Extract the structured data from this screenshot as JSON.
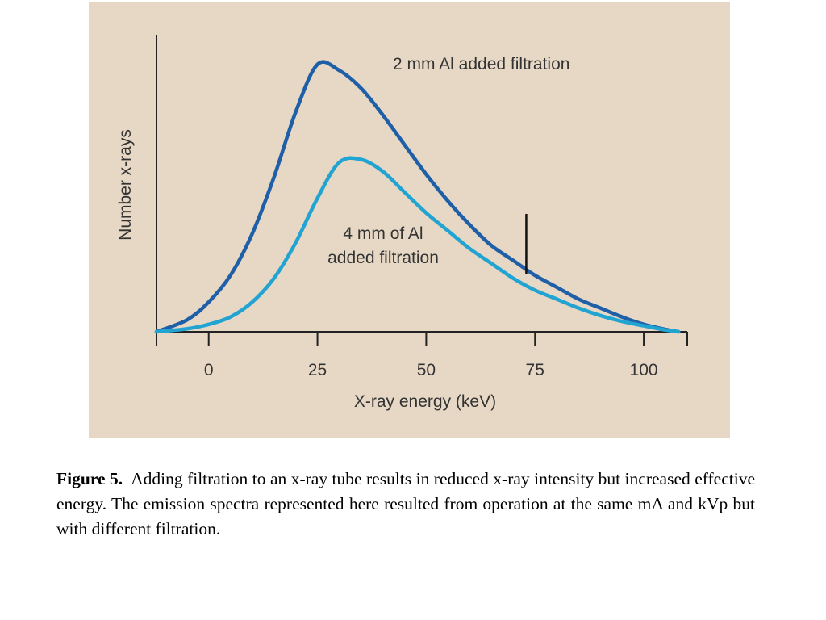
{
  "chart_data": {
    "type": "line",
    "title": "",
    "xlabel": "X-ray energy (keV)",
    "ylabel": "Number x-rays",
    "x_ticks": [
      0,
      25,
      50,
      75,
      100
    ],
    "x_tick_labels": [
      "0",
      "25",
      "50",
      "75",
      "100"
    ],
    "xlim": [
      -12,
      110
    ],
    "ylim": [
      0,
      100
    ],
    "grid": false,
    "legend": "none",
    "marker_x": 73,
    "series": [
      {
        "name": "2 mm Al added filtration",
        "color": "#1f5fa8",
        "x": [
          -12,
          -5,
          0,
          5,
          10,
          15,
          20,
          25,
          30,
          35,
          40,
          45,
          50,
          55,
          60,
          65,
          70,
          75,
          80,
          85,
          90,
          95,
          100,
          105,
          108
        ],
        "y": [
          0,
          4,
          10,
          19,
          33,
          52,
          74,
          90,
          88,
          82,
          73,
          63,
          53,
          44,
          36,
          29,
          24,
          19,
          15,
          11,
          8,
          5,
          2.5,
          0.8,
          0
        ]
      },
      {
        "name": "4 mm of Al added filtration",
        "color": "#22a4d2",
        "x": [
          -12,
          -5,
          0,
          5,
          10,
          15,
          20,
          25,
          30,
          35,
          40,
          45,
          50,
          55,
          60,
          65,
          70,
          75,
          80,
          85,
          90,
          95,
          100,
          105,
          108
        ],
        "y": [
          0,
          1,
          2.5,
          5,
          10,
          18,
          30,
          45,
          57,
          58,
          54,
          47,
          40,
          34,
          28,
          23,
          18,
          14,
          11,
          8,
          5.5,
          3.5,
          2,
          0.6,
          0
        ]
      }
    ],
    "annotations": [
      {
        "lines": [
          "2 mm Al added filtration"
        ]
      },
      {
        "lines": [
          "4 mm of Al",
          "added filtration"
        ]
      }
    ]
  },
  "caption": {
    "label": "Figure 5.",
    "text": "Adding filtration to an x-ray tube results in reduced x-ray intensity but increased effective energy. The emission spectra represented here resulted from operation at the same mA and kVp but with different filtration."
  }
}
